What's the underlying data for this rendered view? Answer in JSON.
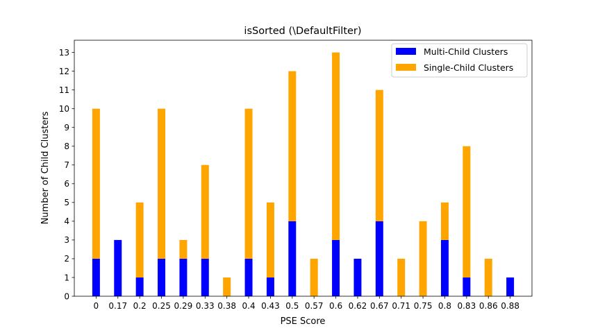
{
  "chart_data": {
    "type": "bar",
    "stacked": true,
    "title": "isSorted (\\DefaultFilter)",
    "xlabel": "PSE Score",
    "ylabel": "Number of Child Clusters",
    "categories": [
      "0",
      "0.17",
      "0.2",
      "0.25",
      "0.29",
      "0.33",
      "0.38",
      "0.4",
      "0.43",
      "0.5",
      "0.57",
      "0.6",
      "0.62",
      "0.67",
      "0.71",
      "0.75",
      "0.8",
      "0.83",
      "0.86",
      "0.88"
    ],
    "series": [
      {
        "name": "Multi-Child Clusters",
        "color": "#0000ff",
        "values": [
          2,
          3,
          1,
          2,
          2,
          2,
          0,
          2,
          1,
          4,
          0,
          3,
          2,
          4,
          0,
          0,
          3,
          1,
          0,
          1
        ]
      },
      {
        "name": "Single-Child Clusters",
        "color": "#ffa500",
        "values": [
          8,
          0,
          4,
          8,
          1,
          5,
          1,
          8,
          4,
          8,
          2,
          10,
          0,
          7,
          2,
          4,
          2,
          7,
          2,
          0
        ]
      }
    ],
    "ylim": [
      0,
      13.65
    ],
    "yticks": [
      0,
      1,
      2,
      3,
      4,
      5,
      6,
      7,
      8,
      9,
      10,
      11,
      12,
      13
    ],
    "legend_position": "top-right",
    "grid": false
  }
}
